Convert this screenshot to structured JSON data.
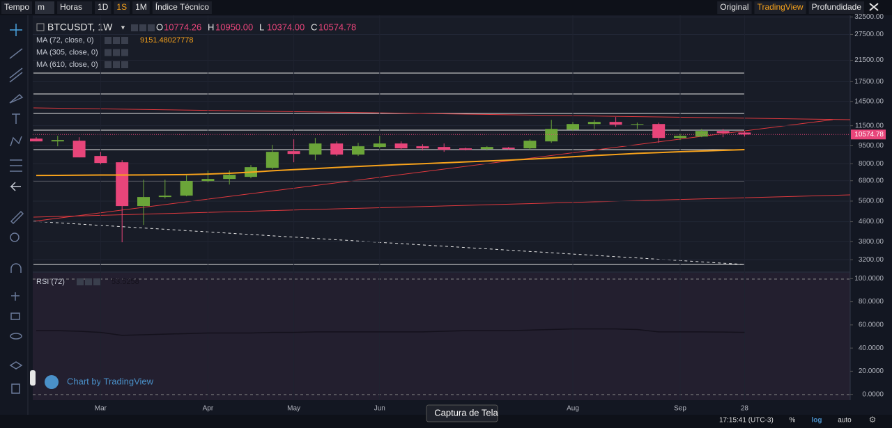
{
  "toolbar": {
    "items": [
      "Tempo",
      "m",
      "Horas",
      "1D",
      "1S",
      "1M",
      "Índice Técnico"
    ],
    "active": "1S",
    "right": [
      "Original",
      "TradingView",
      "Profundidade"
    ],
    "right_active": "TradingView"
  },
  "chart_data": {
    "type": "candlestick",
    "symbol": "BTCUSDT, 1W",
    "ohlc_labels": [
      {
        "key": "O",
        "value": "10774.26"
      },
      {
        "key": "H",
        "value": "10950.00"
      },
      {
        "key": "L",
        "value": "10374.00"
      },
      {
        "key": "C",
        "value": "10574.78"
      }
    ],
    "categories": [
      null,
      null,
      null,
      "Mar",
      null,
      null,
      null,
      null,
      "Apr",
      null,
      null,
      null,
      "May",
      null,
      null,
      null,
      "Jun",
      null,
      null,
      null,
      null,
      null,
      null,
      null,
      null,
      "Aug",
      null,
      null,
      null,
      null,
      "Sep",
      null,
      null,
      "28"
    ],
    "open": [
      10168,
      9902,
      9968,
      8614,
      8112,
      5341,
      5822,
      5900,
      6783,
      6919,
      7057,
      7694,
      9023,
      8729,
      9705,
      8729,
      9390,
      9705,
      9452,
      9390,
      9266,
      9205,
      9328,
      9266,
      9902,
      11085,
      11690,
      11924,
      11613,
      11690,
      10235,
      10371,
      10939,
      10774.26
    ],
    "high": [
      10304,
      10442,
      10304,
      8963,
      8275,
      6873,
      6873,
      7152,
      7493,
      7493,
      7901,
      9578,
      10101,
      10235,
      9902,
      9770,
      10442,
      9902,
      9641,
      9705,
      9328,
      9452,
      9390,
      10101,
      12165,
      11924,
      12165,
      12494,
      11846,
      11846,
      10651,
      11157,
      11157,
      10950
    ],
    "low": [
      9902,
      9452,
      8500,
      7953,
      3780,
      4463,
      5744,
      5861,
      6693,
      6560,
      6965,
      7593,
      8112,
      8275,
      8614,
      8614,
      9266,
      9143,
      9083,
      8963,
      9083,
      9083,
      9143,
      9143,
      9770,
      10939,
      11157,
      11383,
      11157,
      9770,
      10034,
      10304,
      10304,
      10374
    ],
    "close": [
      9902,
      10034,
      8500,
      8059,
      5341,
      5822,
      5900,
      6783,
      6919,
      7200,
      7745,
      8963,
      8785,
      9705,
      8729,
      9452,
      9705,
      9266,
      9266,
      9143,
      9143,
      9390,
      9205,
      9968,
      11157,
      11690,
      11924,
      11613,
      11690,
      10235,
      10442,
      10939,
      10722,
      10574.78
    ],
    "up_color": "#6ba539",
    "down_color": "#e8457a",
    "log": true,
    "ylim": [
      2900,
      33000
    ],
    "yticks": [
      {
        "value": 32500,
        "label": "32500.00"
      },
      {
        "value": 27500,
        "label": "27500.00"
      },
      {
        "value": 21500,
        "label": "21500.00"
      },
      {
        "value": 17500,
        "label": "17500.00"
      },
      {
        "value": 14500,
        "label": "14500.00"
      },
      {
        "value": 11500,
        "label": "11500.00"
      },
      {
        "value": 9500,
        "label": "9500.00"
      },
      {
        "value": 8000,
        "label": "8000.00"
      },
      {
        "value": 6800,
        "label": "6800.00"
      },
      {
        "value": 5600,
        "label": "5600.00"
      },
      {
        "value": 4600,
        "label": "4600.00"
      },
      {
        "value": 3800,
        "label": "3800.00"
      },
      {
        "value": 3200,
        "label": "3200.00"
      }
    ],
    "last_price_label": "10574.78",
    "indicators": [
      {
        "name": "MA (72, close, 0)",
        "value_label": "9151.48027778",
        "color": "#f7a21b",
        "values": [
          7150,
          7160,
          7170,
          7180,
          7180,
          7190,
          7200,
          7210,
          7250,
          7300,
          7380,
          7480,
          7560,
          7640,
          7720,
          7800,
          7870,
          7940,
          8000,
          8070,
          8140,
          8210,
          8280,
          8360,
          8450,
          8550,
          8650,
          8740,
          8830,
          8900,
          8970,
          9030,
          9090,
          9151.48027778
        ]
      },
      {
        "name": "MA (305, close, 0)"
      },
      {
        "name": "MA (610, close, 0)"
      }
    ],
    "rsi": {
      "name": "RSI (72)",
      "value_label": "53.5258",
      "color": "#14111c",
      "ylim": [
        -5,
        105
      ],
      "yticks": [
        {
          "value": 100,
          "label": "100.0000"
        },
        {
          "value": 80,
          "label": "80.0000"
        },
        {
          "value": 60,
          "label": "60.0000"
        },
        {
          "value": 40,
          "label": "40.0000"
        },
        {
          "value": 20,
          "label": "20.0000"
        },
        {
          "value": 0,
          "label": "0.0000"
        }
      ],
      "values": [
        55,
        55,
        54.5,
        53.5,
        51,
        51.5,
        52,
        52.5,
        53,
        53,
        53,
        53.5,
        53.5,
        54,
        54,
        54,
        54,
        54,
        54,
        54.5,
        55,
        55,
        55,
        55.5,
        56,
        56.5,
        56.5,
        56.5,
        56,
        54,
        54,
        54,
        53.8,
        53.5258
      ]
    }
  },
  "watermark": "Chart by TradingView",
  "tooltip": "Captura de Tela",
  "footer": {
    "time": "17:15:41 (UTC-3)",
    "buttons": [
      "%",
      "log",
      "auto"
    ],
    "active": "log"
  }
}
